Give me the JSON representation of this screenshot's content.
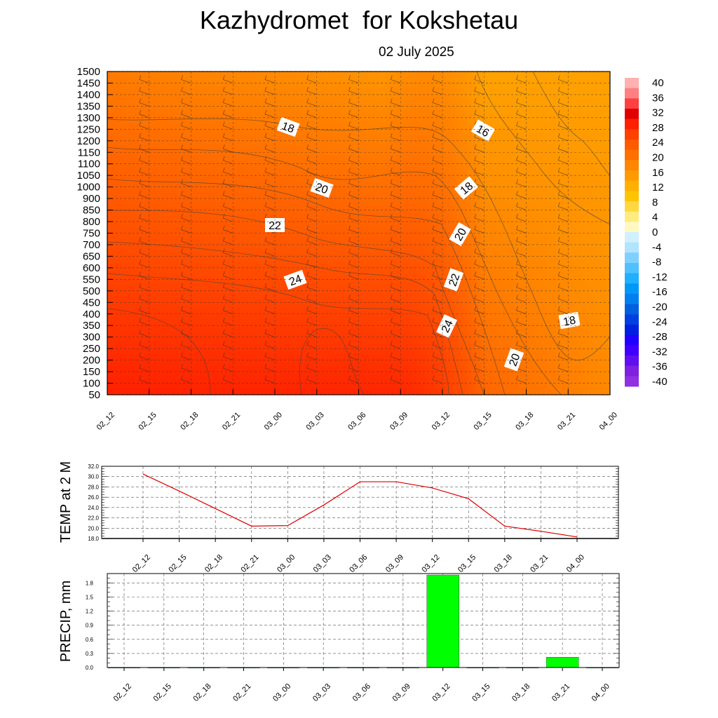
{
  "title": "Kazhydromet  for Kokshetau",
  "date": "02 July 2025",
  "colorbar": {
    "labels": [
      "40",
      "36",
      "32",
      "28",
      "24",
      "20",
      "16",
      "12",
      "8",
      "4",
      "0",
      "-4",
      "-8",
      "-12",
      "-16",
      "-20",
      "-24",
      "-28",
      "-32",
      "-36",
      "-40"
    ]
  },
  "chart_data": [
    {
      "type": "heatmap",
      "description_key": "temperature-height cross-section",
      "x": [
        "02_12",
        "02_15",
        "02_18",
        "02_21",
        "03_00",
        "03_03",
        "03_06",
        "03_09",
        "03_12",
        "03_15",
        "03_18",
        "03_21",
        "04_00"
      ],
      "y": [
        "50",
        "100",
        "150",
        "200",
        "250",
        "300",
        "350",
        "400",
        "450",
        "500",
        "550",
        "600",
        "650",
        "700",
        "750",
        "800",
        "850",
        "900",
        "1000",
        "1050",
        "1100",
        "1150",
        "1200",
        "1250",
        "1300",
        "1350",
        "1400",
        "1450",
        "1500"
      ],
      "ylim": [
        50,
        1500
      ],
      "contour_labels": [
        "18",
        "16",
        "20",
        "18",
        "22",
        "20",
        "24",
        "22",
        "24",
        "18",
        "20"
      ],
      "colorscale_range": [
        -40,
        40
      ]
    },
    {
      "type": "line",
      "ylabel": "TEMP at 2 M",
      "x": [
        "02_12",
        "02_15",
        "02_18",
        "02_21",
        "03_00",
        "03_03",
        "03_06",
        "03_09",
        "03_12",
        "03_15",
        "03_18",
        "03_21",
        "04_00"
      ],
      "values": [
        30.5,
        27.2,
        23.8,
        20.4,
        20.5,
        24.5,
        29.0,
        29.0,
        27.8,
        25.7,
        20.4,
        19.4,
        18.3
      ],
      "ylim": [
        18.0,
        32.0
      ],
      "yticks": [
        "32.0",
        "30.0",
        "28.0",
        "26.0",
        "24.0",
        "22.0",
        "20.0",
        "18.0"
      ],
      "color": "#e00000",
      "grid": true
    },
    {
      "type": "bar",
      "ylabel": "PRECIP, mm",
      "categories": [
        "02_12",
        "02_15",
        "02_18",
        "02_21",
        "03_00",
        "03_03",
        "03_06",
        "03_09",
        "03_12",
        "03_15",
        "03_18",
        "03_21",
        "04_00"
      ],
      "values": [
        0,
        0,
        0,
        0,
        0,
        0,
        0,
        0,
        1.97,
        0,
        0,
        0.22,
        0
      ],
      "ylim": [
        0,
        2.0
      ],
      "yticks": [
        "1.8",
        "1.5",
        "1.2",
        "0.9",
        "0.6",
        "0.3",
        "0.0"
      ],
      "color": "#00ff00",
      "grid": true
    }
  ]
}
